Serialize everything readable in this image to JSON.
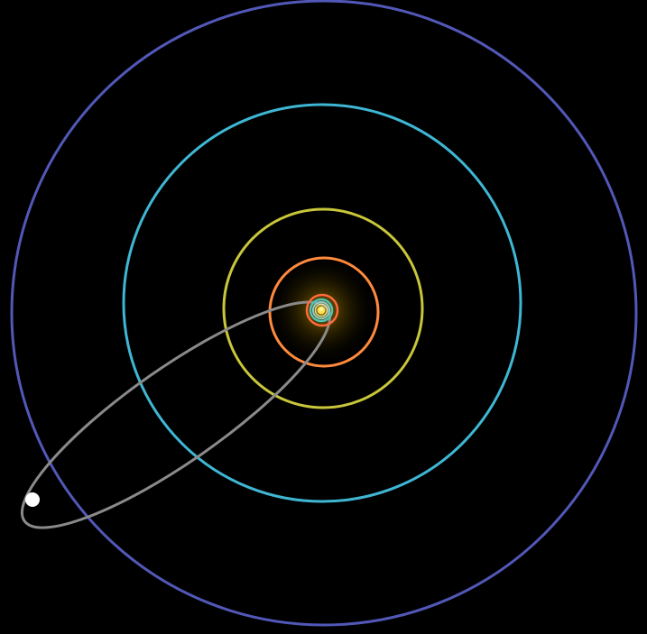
{
  "diagram": {
    "background": "#000000",
    "sun": {
      "name": "sun",
      "color": "#ffe14a",
      "glow_color": "#ffcc00",
      "core_color": "#fff6b0"
    },
    "orbits": [
      {
        "name": "inner-ring-1",
        "color": "#e8e0a0"
      },
      {
        "name": "inner-ring-2",
        "color": "#8fd0c8"
      },
      {
        "name": "inner-ring-3",
        "color": "#4fc3b8"
      },
      {
        "name": "inner-ring-4",
        "color": "#ff6a3d"
      },
      {
        "name": "planet-orbit-1",
        "color": "#ff8a3d"
      },
      {
        "name": "planet-orbit-2",
        "color": "#c8c63a"
      },
      {
        "name": "planet-orbit-3",
        "color": "#3fb7d4"
      },
      {
        "name": "planet-orbit-4",
        "color": "#5258b8"
      }
    ],
    "comet": {
      "orbit_name": "comet-orbit",
      "orbit_color": "#8a8a8a",
      "body_color": "#ffffff"
    }
  }
}
